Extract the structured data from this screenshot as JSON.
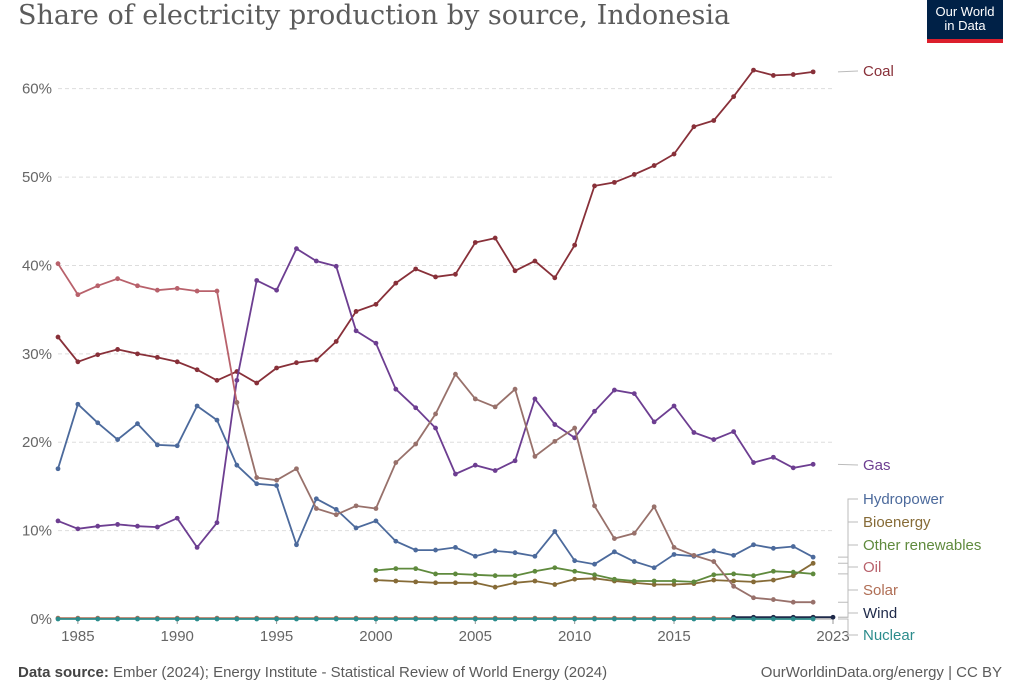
{
  "title": "Share of electricity production by source, Indonesia",
  "logo": {
    "line1": "Our World",
    "line2": "in Data"
  },
  "footer": {
    "source_label": "Data source:",
    "source_text": "Ember (2024); Energy Institute - Statistical Review of World Energy (2024)",
    "url_license": "OurWorldinData.org/energy | CC BY"
  },
  "chart_data": {
    "type": "line",
    "title": "Share of electricity production by source, Indonesia",
    "xlim": [
      1984,
      2023
    ],
    "ylim": [
      0,
      62
    ],
    "x_ticks": [
      1985,
      1990,
      1995,
      2000,
      2005,
      2010,
      2015,
      2023
    ],
    "y_ticks": [
      0,
      10,
      20,
      30,
      40,
      50,
      60
    ],
    "y_tick_labels": [
      "0%",
      "10%",
      "20%",
      "30%",
      "40%",
      "50%",
      "60%"
    ],
    "grid": "horizontal-dashed",
    "legend": "right-inline",
    "series": [
      {
        "name": "Coal",
        "color": "#883039",
        "x_start": 1984,
        "values": [
          31.9,
          29.1,
          29.9,
          30.5,
          30.0,
          29.6,
          29.1,
          28.2,
          27.0,
          28.0,
          26.7,
          28.4,
          29.0,
          29.3,
          31.4,
          34.8,
          35.6,
          38.0,
          39.6,
          38.7,
          39.0,
          42.6,
          43.1,
          39.4,
          40.5,
          38.6,
          42.3,
          49.0,
          49.4,
          50.3,
          51.3,
          52.6,
          55.7,
          56.4,
          59.1,
          62.1,
          61.5,
          61.6,
          61.9
        ]
      },
      {
        "name": "Gas",
        "color": "#6d3e91",
        "x_start": 1984,
        "values": [
          11.1,
          10.2,
          10.5,
          10.7,
          10.5,
          10.4,
          11.4,
          8.1,
          10.9,
          27.0,
          38.3,
          37.2,
          41.9,
          40.5,
          39.9,
          32.6,
          31.2,
          26.0,
          23.9,
          21.6,
          16.4,
          17.4,
          16.8,
          17.9,
          24.9,
          22.0,
          20.5,
          23.5,
          25.9,
          25.5,
          22.3,
          24.1,
          21.1,
          20.3,
          21.2,
          17.7,
          18.3,
          17.1,
          17.5
        ]
      },
      {
        "name": "Hydropower",
        "color": "#4c6a9c",
        "x_start": 1984,
        "values": [
          17.0,
          24.3,
          22.2,
          20.3,
          22.1,
          19.7,
          19.6,
          24.1,
          22.5,
          17.4,
          15.3,
          15.1,
          8.4,
          13.6,
          12.4,
          10.3,
          11.1,
          8.8,
          7.8,
          7.8,
          8.1,
          7.1,
          7.7,
          7.5,
          7.1,
          9.9,
          6.6,
          6.2,
          7.6,
          6.5,
          5.8,
          7.3,
          7.1,
          7.7,
          7.2,
          8.4,
          8.0,
          8.2,
          7.0
        ]
      },
      {
        "name": "Bioenergy",
        "color": "#866b37",
        "x_start": 2000,
        "values": [
          4.4,
          4.3,
          4.2,
          4.1,
          4.1,
          4.1,
          3.6,
          4.1,
          4.3,
          3.9,
          4.5,
          4.6,
          4.3,
          4.1,
          3.9,
          3.9,
          4.0,
          4.4,
          4.3,
          4.2,
          4.4,
          4.9,
          6.3
        ]
      },
      {
        "name": "Other renewables",
        "color": "#5f8a3d",
        "x_start": 2000,
        "values": [
          5.5,
          5.7,
          5.7,
          5.1,
          5.1,
          5.0,
          4.9,
          4.9,
          5.4,
          5.8,
          5.4,
          5.0,
          4.5,
          4.3,
          4.3,
          4.3,
          4.2,
          5.0,
          5.1,
          4.9,
          5.4,
          5.3,
          5.1
        ]
      },
      {
        "name": "Oil",
        "color": "#b8616b",
        "x_start": 1984,
        "values": [
          40.2,
          36.7,
          37.7,
          38.5,
          37.7,
          37.2,
          37.4,
          37.1,
          37.1,
          24.5,
          null,
          null,
          null,
          null,
          null,
          null,
          null,
          null,
          null,
          null,
          null,
          null,
          null,
          null,
          null,
          null,
          null,
          null,
          null,
          null,
          null,
          null,
          null,
          null,
          null,
          null,
          null,
          null,
          null
        ]
      },
      {
        "name": "Oil",
        "color": "#98716b",
        "x_start": 1993,
        "values": [
          24.5,
          16.0,
          15.7,
          17.0,
          12.5,
          11.8,
          12.8,
          12.5,
          17.7,
          19.8,
          23.2,
          27.7,
          24.9,
          24.0,
          26.0,
          18.4,
          20.1,
          21.6,
          12.8,
          9.1,
          9.7,
          12.7,
          8.1,
          7.2,
          6.5,
          3.7,
          2.4,
          2.2,
          1.9,
          1.9
        ]
      },
      {
        "name": "Solar",
        "color": "#b06e55",
        "x_start": 1984,
        "values": [
          0.1,
          0.1,
          0.1,
          0.1,
          0.1,
          0.1,
          0.1,
          0.1,
          0.1,
          0.1,
          0.1,
          0.1,
          0.1,
          0.1,
          0.1,
          0.1,
          0.1,
          0.1,
          0.1,
          0.1,
          0.1,
          0.1,
          0.1,
          0.1,
          0.1,
          0.1,
          0.1,
          0.1,
          0.1,
          0.1,
          0.1,
          0.1,
          0.1,
          0.1,
          0.1,
          0.1,
          0.1,
          0.1,
          0.2
        ]
      },
      {
        "name": "Wind",
        "color": "#1f2a4a",
        "x_start": 2018,
        "values": [
          0.2,
          0.2,
          0.2,
          0.2,
          0.2,
          0.2
        ]
      },
      {
        "name": "Nuclear",
        "color": "#2c8c8c",
        "x_start": 1984,
        "values": [
          0,
          0,
          0,
          0,
          0,
          0,
          0,
          0,
          0,
          0,
          0,
          0,
          0,
          0,
          0,
          0,
          0,
          0,
          0,
          0,
          0,
          0,
          0,
          0,
          0,
          0,
          0,
          0,
          0,
          0,
          0,
          0,
          0,
          0,
          0,
          0,
          0,
          0,
          0
        ]
      }
    ],
    "legend_entries": [
      {
        "name": "Coal",
        "color": "#883039",
        "anchor_value": 61.9
      },
      {
        "name": "Gas",
        "color": "#6d3e91",
        "anchor_value": 17.5
      },
      {
        "name": "Hydropower",
        "color": "#4c6a9c",
        "anchor_value": 7.0
      },
      {
        "name": "Bioenergy",
        "color": "#866b37",
        "anchor_value": 6.3
      },
      {
        "name": "Other renewables",
        "color": "#5f8a3d",
        "anchor_value": 5.1
      },
      {
        "name": "Oil",
        "color": "#b8616b",
        "anchor_value": 1.9
      },
      {
        "name": "Solar",
        "color": "#b06e55",
        "anchor_value": 0.2
      },
      {
        "name": "Wind",
        "color": "#1f2a4a",
        "anchor_value": 0.2
      },
      {
        "name": "Nuclear",
        "color": "#2c8c8c",
        "anchor_value": 0.0
      }
    ]
  }
}
